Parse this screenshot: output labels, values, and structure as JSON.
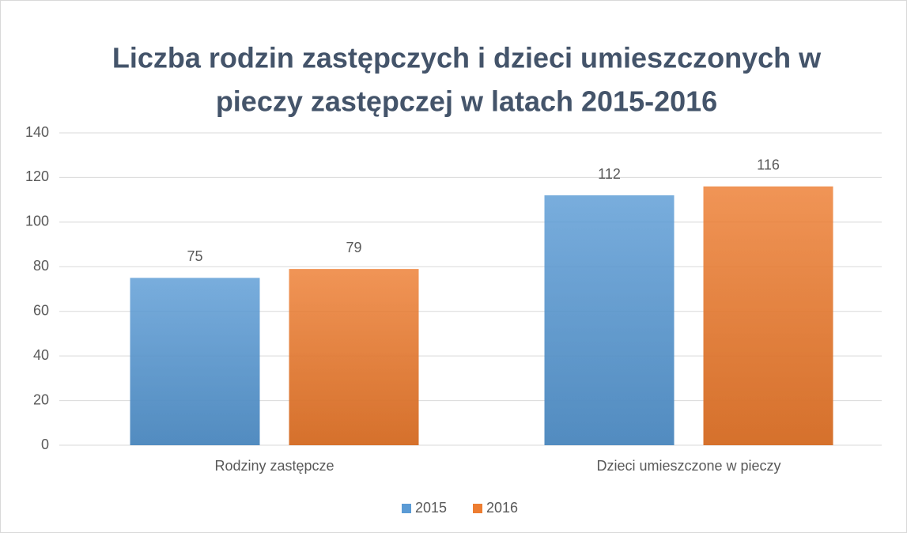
{
  "chart_data": {
    "type": "bar",
    "title": [
      "Liczba rodzin zastępczych i dzieci umieszczonych w",
      "pieczy zastępczej w latach 2015-2016"
    ],
    "categories": [
      "Rodziny zastępcze",
      "Dzieci umieszczone w pieczy"
    ],
    "series": [
      {
        "name": "2015",
        "color": "#5b9bd5",
        "values": [
          75,
          112
        ]
      },
      {
        "name": "2016",
        "color": "#ed7d31",
        "values": [
          79,
          116
        ]
      }
    ],
    "ylim": [
      0,
      140
    ],
    "yticks": [
      0,
      20,
      40,
      60,
      80,
      100,
      120,
      140
    ],
    "grid": true,
    "legend": "bottom"
  }
}
